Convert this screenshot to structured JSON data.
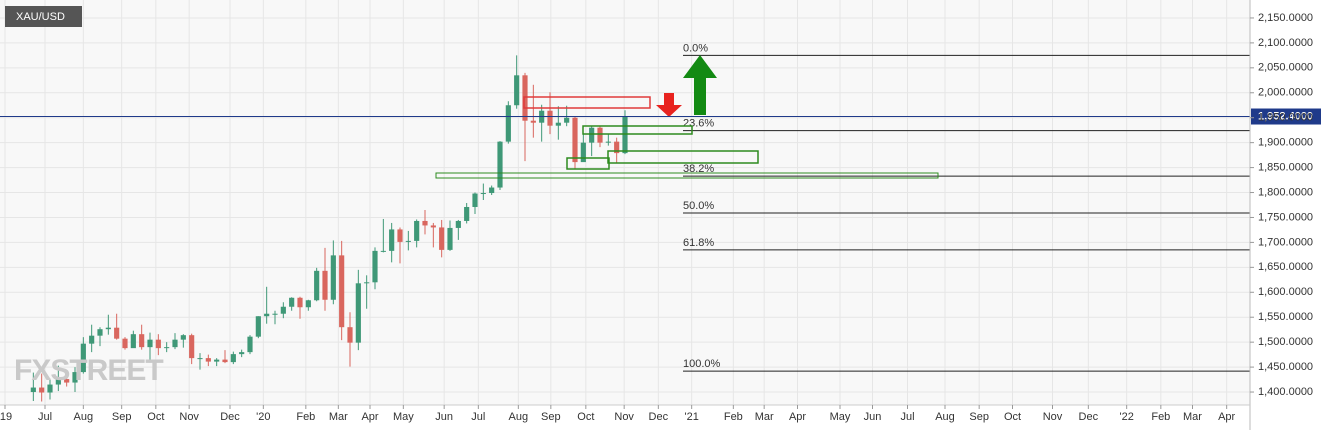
{
  "chart_data": {
    "type": "candlestick",
    "title": "XAU/USD",
    "watermark": "FXSTREET",
    "x": [
      3,
      4,
      5,
      6,
      7,
      8,
      9,
      10,
      11,
      12,
      13,
      14,
      15,
      16,
      17,
      18,
      19,
      20,
      21,
      22,
      23,
      24,
      25,
      26,
      27,
      28,
      29,
      30,
      31,
      32,
      33,
      34,
      35,
      36,
      37,
      38,
      39,
      40,
      41,
      42,
      43,
      44,
      45,
      46,
      47,
      48,
      49,
      50,
      51,
      52,
      53,
      54,
      55,
      56,
      57,
      58,
      59,
      60,
      61,
      62,
      63,
      64,
      65,
      66,
      67,
      68,
      69,
      70,
      71,
      72,
      73,
      74
    ],
    "open": [
      1400,
      1409,
      1399,
      1415,
      1426,
      1419,
      1440,
      1497,
      1513,
      1526,
      1529,
      1507,
      1488,
      1516,
      1490,
      1505,
      1488,
      1490,
      1505,
      1514,
      1468,
      1468,
      1461,
      1465,
      1460,
      1476,
      1480,
      1511,
      1552,
      1557,
      1557,
      1571,
      1589,
      1570,
      1584,
      1643,
      1585,
      1674,
      1530,
      1499,
      1618,
      1620,
      1683,
      1683,
      1726,
      1701,
      1703,
      1743,
      1734,
      1730,
      1685,
      1729,
      1743,
      1771,
      1798,
      1799,
      1810,
      1902,
      1975,
      2035,
      1944,
      1940,
      1964,
      1934,
      1940,
      1950,
      1861,
      1900,
      1930,
      1900,
      1902,
      1879
    ],
    "high": [
      1439,
      1437,
      1427,
      1453,
      1433,
      1450,
      1510,
      1535,
      1530,
      1555,
      1557,
      1510,
      1523,
      1535,
      1519,
      1516,
      1500,
      1518,
      1516,
      1517,
      1478,
      1475,
      1468,
      1484,
      1481,
      1485,
      1514,
      1552,
      1611,
      1563,
      1580,
      1590,
      1591,
      1585,
      1649,
      1689,
      1704,
      1703,
      1560,
      1645,
      1634,
      1690,
      1747,
      1739,
      1730,
      1723,
      1746,
      1765,
      1739,
      1745,
      1744,
      1745,
      1779,
      1800,
      1818,
      1814,
      1903,
      1983,
      2075,
      2040,
      2016,
      1976,
      2001,
      1973,
      1974,
      1952,
      1918,
      1933,
      1933,
      1917,
      1910,
      1965
    ],
    "low": [
      1382,
      1381,
      1385,
      1402,
      1411,
      1400,
      1437,
      1480,
      1492,
      1515,
      1505,
      1485,
      1490,
      1485,
      1459,
      1474,
      1480,
      1486,
      1489,
      1456,
      1445,
      1452,
      1452,
      1458,
      1456,
      1470,
      1476,
      1508,
      1537,
      1536,
      1548,
      1563,
      1547,
      1563,
      1582,
      1563,
      1576,
      1504,
      1451,
      1484,
      1567,
      1606,
      1680,
      1660,
      1658,
      1684,
      1690,
      1716,
      1690,
      1670,
      1683,
      1705,
      1738,
      1757,
      1785,
      1795,
      1805,
      1898,
      1968,
      1863,
      1910,
      1902,
      1917,
      1906,
      1933,
      1848,
      1862,
      1873,
      1891,
      1894,
      1860,
      1877
    ],
    "close": [
      1409,
      1399,
      1415,
      1426,
      1419,
      1440,
      1497,
      1513,
      1526,
      1529,
      1507,
      1488,
      1516,
      1490,
      1505,
      1488,
      1490,
      1505,
      1514,
      1468,
      1468,
      1461,
      1465,
      1460,
      1476,
      1480,
      1511,
      1552,
      1557,
      1557,
      1571,
      1589,
      1570,
      1584,
      1643,
      1585,
      1674,
      1530,
      1499,
      1618,
      1620,
      1683,
      1683,
      1726,
      1701,
      1703,
      1743,
      1734,
      1730,
      1685,
      1729,
      1743,
      1771,
      1798,
      1799,
      1810,
      1902,
      1975,
      2035,
      1944,
      1940,
      1964,
      1934,
      1940,
      1950,
      1861,
      1900,
      1930,
      1900,
      1902,
      1879,
      1952
    ],
    "up_color": "#3f9877",
    "down_color": "#d9665e",
    "xlim": [
      -1,
      149
    ],
    "xticks": [
      {
        "value": -0.4,
        "label": "'19"
      },
      {
        "value": 4.4,
        "label": "Jul"
      },
      {
        "value": 9,
        "label": "Aug"
      },
      {
        "value": 13.6,
        "label": "Sep"
      },
      {
        "value": 17.7,
        "label": "Oct"
      },
      {
        "value": 21.7,
        "label": "Nov"
      },
      {
        "value": 26.6,
        "label": "Dec"
      },
      {
        "value": 30.6,
        "label": "'20"
      },
      {
        "value": 35.7,
        "label": "Feb"
      },
      {
        "value": 39.6,
        "label": "Mar"
      },
      {
        "value": 43.4,
        "label": "Apr"
      },
      {
        "value": 47.4,
        "label": "May"
      },
      {
        "value": 52.3,
        "label": "Jun"
      },
      {
        "value": 56.4,
        "label": "Jul"
      },
      {
        "value": 61.2,
        "label": "Aug"
      },
      {
        "value": 65.1,
        "label": "Sep"
      },
      {
        "value": 69.3,
        "label": "Oct"
      },
      {
        "value": 73.9,
        "label": "Nov"
      },
      {
        "value": 78,
        "label": "Dec"
      },
      {
        "value": 82,
        "label": "'21"
      },
      {
        "value": 87,
        "label": "Feb"
      },
      {
        "value": 90.7,
        "label": "Mar"
      },
      {
        "value": 94.7,
        "label": "Apr"
      },
      {
        "value": 99.8,
        "label": "May"
      },
      {
        "value": 103.7,
        "label": "Jun"
      },
      {
        "value": 107.9,
        "label": "Jul"
      },
      {
        "value": 112.4,
        "label": "Aug"
      },
      {
        "value": 116.5,
        "label": "Sep"
      },
      {
        "value": 120.5,
        "label": "Oct"
      },
      {
        "value": 125.3,
        "label": "Nov"
      },
      {
        "value": 129.6,
        "label": "Dec"
      },
      {
        "value": 134.2,
        "label": "'22"
      },
      {
        "value": 138.3,
        "label": "Feb"
      },
      {
        "value": 142.1,
        "label": "Mar"
      },
      {
        "value": 146.2,
        "label": "Apr"
      }
    ],
    "ylim": [
      1374,
      2186
    ],
    "yticks": [
      {
        "value": 1400,
        "label": "1,400.0000"
      },
      {
        "value": 1450,
        "label": "1,450.0000"
      },
      {
        "value": 1500,
        "label": "1,500.0000"
      },
      {
        "value": 1550,
        "label": "1,550.0000"
      },
      {
        "value": 1600,
        "label": "1,600.0000"
      },
      {
        "value": 1650,
        "label": "1,650.0000"
      },
      {
        "value": 1700,
        "label": "1,700.0000"
      },
      {
        "value": 1750,
        "label": "1,750.0000"
      },
      {
        "value": 1800,
        "label": "1,800.0000"
      },
      {
        "value": 1850,
        "label": "1,850.0000"
      },
      {
        "value": 1900,
        "label": "1,900.0000"
      },
      {
        "value": 1950,
        "label": "1,950.0000"
      },
      {
        "value": 2000,
        "label": "2,000.0000"
      },
      {
        "value": 2050,
        "label": "2,050.0000"
      },
      {
        "value": 2100,
        "label": "2,100.0000"
      },
      {
        "value": 2150,
        "label": "2,150.0000"
      }
    ],
    "grid": true,
    "last_price": {
      "value": 1952.4,
      "label": "1,952.4000"
    },
    "fib_levels": [
      {
        "label": "0.0%",
        "value": 2075
      },
      {
        "label": "23.6%",
        "value": 1924
      },
      {
        "label": "38.2%",
        "value": 1833
      },
      {
        "label": "50.0%",
        "value": 1759
      },
      {
        "label": "61.8%",
        "value": 1685
      },
      {
        "label": "100.0%",
        "value": 1442
      }
    ]
  }
}
